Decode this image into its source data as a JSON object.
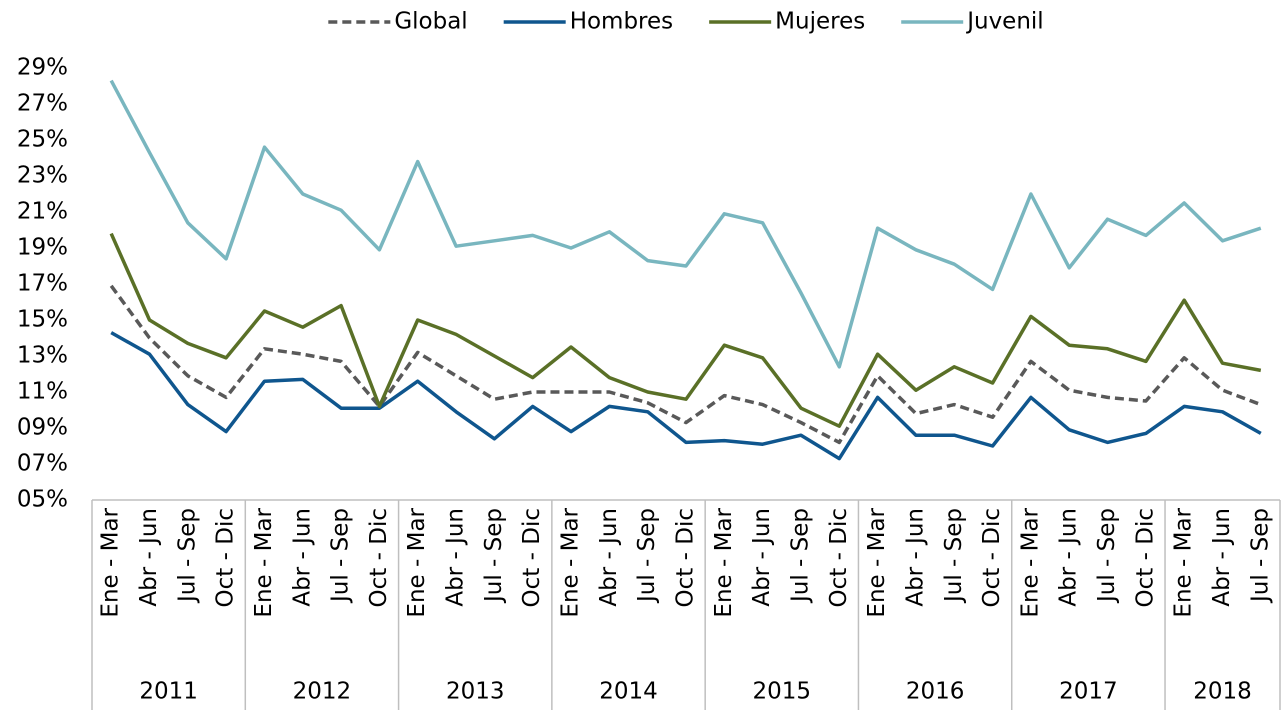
{
  "chart_data": {
    "type": "line",
    "categories": [
      "Ene - Mar",
      "Abr - Jun",
      "Jul - Sep",
      "Oct - Dic",
      "Ene - Mar",
      "Abr - Jun",
      "Jul - Sep",
      "Oct - Dic",
      "Ene - Mar",
      "Abr - Jun",
      "Jul - Sep",
      "Oct - Dic",
      "Ene - Mar",
      "Abr - Jun",
      "Jul - Sep",
      "Oct - Dic",
      "Ene - Mar",
      "Abr - Jun",
      "Jul - Sep",
      "Oct - Dic",
      "Ene - Mar",
      "Abr - Jun",
      "Jul - Sep",
      "Oct - Dic",
      "Ene - Mar",
      "Abr - Jun",
      "Jul - Sep",
      "Oct - Dic",
      "Ene - Mar",
      "Abr - Jun",
      "Jul - Sep"
    ],
    "category_groups": [
      {
        "label": "2011",
        "span": 4
      },
      {
        "label": "2012",
        "span": 4
      },
      {
        "label": "2013",
        "span": 4
      },
      {
        "label": "2014",
        "span": 4
      },
      {
        "label": "2015",
        "span": 4
      },
      {
        "label": "2016",
        "span": 4
      },
      {
        "label": "2017",
        "span": 4
      },
      {
        "label": "2018",
        "span": 3
      }
    ],
    "series": [
      {
        "name": "Global",
        "color": "#595959",
        "style": "dashed",
        "values": [
          16.9,
          14.0,
          11.9,
          10.7,
          13.4,
          13.1,
          12.7,
          10.2,
          13.2,
          11.9,
          10.6,
          11.0,
          11.0,
          11.0,
          10.4,
          9.3,
          10.8,
          10.3,
          9.3,
          8.2,
          11.9,
          9.8,
          10.3,
          9.6,
          12.7,
          11.1,
          10.7,
          10.5,
          12.9,
          11.1,
          10.3
        ]
      },
      {
        "name": "Hombres",
        "color": "#0f568e",
        "style": "solid",
        "values": [
          14.3,
          13.1,
          10.3,
          8.8,
          11.6,
          11.7,
          10.1,
          10.1,
          11.6,
          9.9,
          8.4,
          10.2,
          8.8,
          10.2,
          9.9,
          8.2,
          8.3,
          8.1,
          8.6,
          7.3,
          10.7,
          8.6,
          8.6,
          8.0,
          10.7,
          8.9,
          8.2,
          8.7,
          10.2,
          9.9,
          8.7
        ]
      },
      {
        "name": "Mujeres",
        "color": "#5a7027",
        "style": "solid",
        "values": [
          19.8,
          15.0,
          13.7,
          12.9,
          15.5,
          14.6,
          15.8,
          10.2,
          15.0,
          14.2,
          13.0,
          11.8,
          13.5,
          11.8,
          11.0,
          10.6,
          13.6,
          12.9,
          10.1,
          9.1,
          13.1,
          11.1,
          12.4,
          11.5,
          15.2,
          13.6,
          13.4,
          12.7,
          16.1,
          12.6,
          12.2
        ]
      },
      {
        "name": "Juvenil",
        "color": "#79b6bf",
        "style": "solid",
        "values": [
          28.3,
          24.3,
          20.4,
          18.4,
          24.6,
          22.0,
          21.1,
          18.9,
          23.8,
          19.1,
          19.4,
          19.7,
          19.0,
          19.9,
          18.3,
          18.0,
          20.9,
          20.4,
          16.5,
          12.4,
          20.1,
          18.9,
          18.1,
          16.7,
          22.0,
          17.9,
          20.6,
          19.7,
          21.5,
          19.4,
          20.1
        ]
      }
    ],
    "ylim": [
      5,
      29
    ],
    "yticks": [
      {
        "value": 5,
        "label": "05%"
      },
      {
        "value": 7,
        "label": "07%"
      },
      {
        "value": 9,
        "label": "09%"
      },
      {
        "value": 11,
        "label": "11%"
      },
      {
        "value": 13,
        "label": "13%"
      },
      {
        "value": 15,
        "label": "15%"
      },
      {
        "value": 17,
        "label": "17%"
      },
      {
        "value": 19,
        "label": "19%"
      },
      {
        "value": 21,
        "label": "21%"
      },
      {
        "value": 23,
        "label": "23%"
      },
      {
        "value": 25,
        "label": "25%"
      },
      {
        "value": 27,
        "label": "27%"
      },
      {
        "value": 29,
        "label": "29%"
      }
    ],
    "grid": false,
    "legend": "top"
  }
}
